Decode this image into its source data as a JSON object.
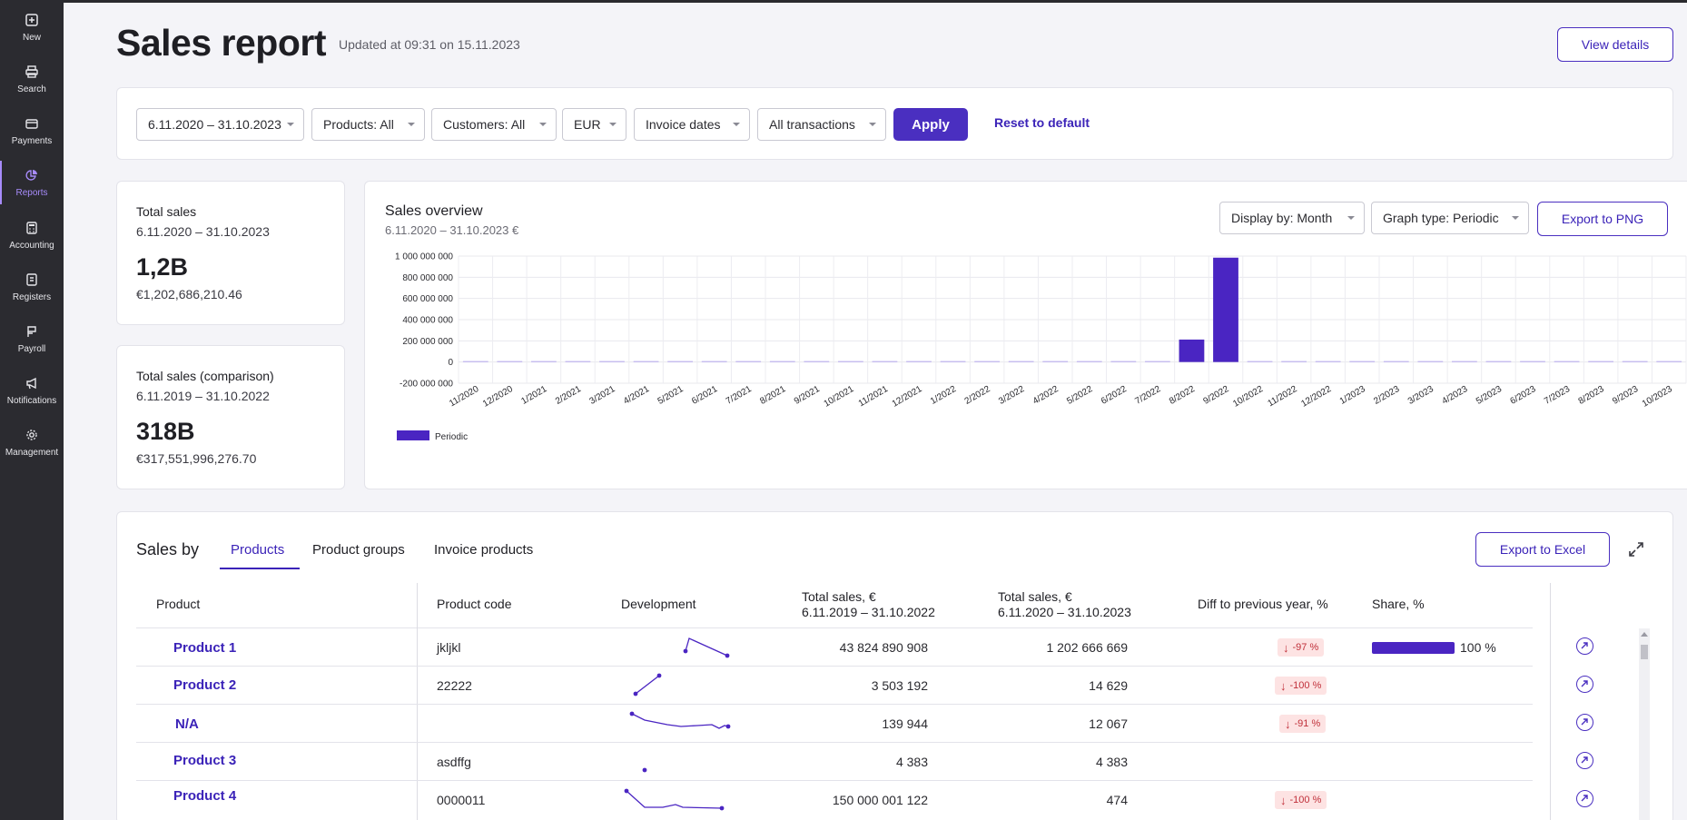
{
  "sidebar": {
    "items": [
      {
        "label": "New",
        "icon": "plus-square-icon"
      },
      {
        "label": "Search",
        "icon": "printer-icon"
      },
      {
        "label": "Payments",
        "icon": "card-icon"
      },
      {
        "label": "Reports",
        "icon": "pie-chart-icon",
        "active": true
      },
      {
        "label": "Accounting",
        "icon": "calculator-icon"
      },
      {
        "label": "Registers",
        "icon": "register-icon"
      },
      {
        "label": "Payroll",
        "icon": "payroll-icon"
      },
      {
        "label": "Notifications",
        "icon": "megaphone-icon"
      },
      {
        "label": "Management",
        "icon": "gear-icon"
      }
    ]
  },
  "header": {
    "title": "Sales report",
    "updated": "Updated at 09:31 on 15.11.2023",
    "view_details": "View details"
  },
  "filters": {
    "date_range": "6.11.2020 – 31.10.2023",
    "products": "Products: All",
    "customers": "Customers: All",
    "currency": "EUR",
    "dates": "Invoice dates",
    "transactions": "All transactions",
    "apply": "Apply",
    "reset": "Reset to default"
  },
  "kpi": {
    "total": {
      "title": "Total sales",
      "range": "6.11.2020 – 31.10.2023",
      "big": "1,2B",
      "exact": "€1,202,686,210.46"
    },
    "comparison": {
      "title": "Total sales (comparison)",
      "range": "6.11.2019 – 31.10.2022",
      "big": "318B",
      "exact": "€317,551,996,276.70"
    }
  },
  "overview": {
    "title": "Sales overview",
    "subtitle": "6.11.2020 – 31.10.2023 €",
    "display_by": "Display by: Month",
    "graph_type": "Graph type: Periodic",
    "export": "Export to PNG"
  },
  "chart_data": {
    "type": "bar",
    "title": "Sales overview",
    "categories": [
      "11/2020",
      "12/2020",
      "1/2021",
      "2/2021",
      "3/2021",
      "4/2021",
      "5/2021",
      "6/2021",
      "7/2021",
      "8/2021",
      "9/2021",
      "10/2021",
      "11/2021",
      "12/2021",
      "1/2022",
      "2/2022",
      "3/2022",
      "4/2022",
      "5/2022",
      "6/2022",
      "7/2022",
      "8/2022",
      "9/2022",
      "10/2022",
      "11/2022",
      "12/2022",
      "1/2023",
      "2/2023",
      "3/2023",
      "4/2023",
      "5/2023",
      "6/2023",
      "7/2023",
      "8/2023",
      "9/2023",
      "10/2023"
    ],
    "series": [
      {
        "name": "Periodic",
        "color": "#4a25c2",
        "values": [
          0,
          1200000,
          0,
          800000,
          1000000,
          0,
          900000,
          1100000,
          1000000,
          1200000,
          0,
          0,
          1000000,
          0,
          900000,
          0,
          700000,
          1100000,
          900000,
          1000000,
          1200000,
          212000000,
          985000000,
          0,
          0,
          0,
          1000000,
          800000,
          0,
          1000000,
          1100000,
          900000,
          1000000,
          900000,
          1100000,
          1000000
        ]
      }
    ],
    "yticks": [
      "1 000 000 000",
      "800 000 000",
      "600 000 000",
      "400 000 000",
      "200 000 000",
      "0",
      "-200 000 000"
    ],
    "ylim": [
      -200000000,
      1000000000
    ],
    "grid": true,
    "legend": "bottom-left"
  },
  "sales_by": {
    "title": "Sales by",
    "tabs": [
      "Products",
      "Product groups",
      "Invoice products"
    ],
    "export": "Export to Excel",
    "columns": {
      "product": "Product",
      "code": "Product code",
      "development": "Development",
      "total_prev_1": "Total sales, €",
      "total_prev_2": "6.11.2019 – 31.10.2022",
      "total_cur_1": "Total sales, €",
      "total_cur_2": "6.11.2020 – 31.10.2023",
      "diff": "Diff to previous year, %",
      "share": "Share, %"
    },
    "rows": [
      {
        "name": "Product 1",
        "code": "jkljkl",
        "prev": "43 824 890 908",
        "cur": "1 202 666 669",
        "diff": "-97 %",
        "share": "100 %",
        "share_fraction": 1.0
      },
      {
        "name": "Product 2",
        "code": "22222",
        "prev": "3 503 192",
        "cur": "14 629",
        "diff": "-100 %",
        "share": "",
        "share_fraction": 0
      },
      {
        "name": "N/A",
        "code": "",
        "prev": "139 944",
        "cur": "12 067",
        "diff": "-91 %",
        "share": "",
        "share_fraction": 0
      },
      {
        "name": "Product 3",
        "code": "asdffg",
        "prev": "4 383",
        "cur": "4 383",
        "diff": "",
        "share": "",
        "share_fraction": 0
      },
      {
        "name": "Product 4",
        "code": "0000011",
        "prev": "150 000 001 122",
        "cur": "474",
        "diff": "-100 %",
        "share": "",
        "share_fraction": 0
      }
    ]
  }
}
